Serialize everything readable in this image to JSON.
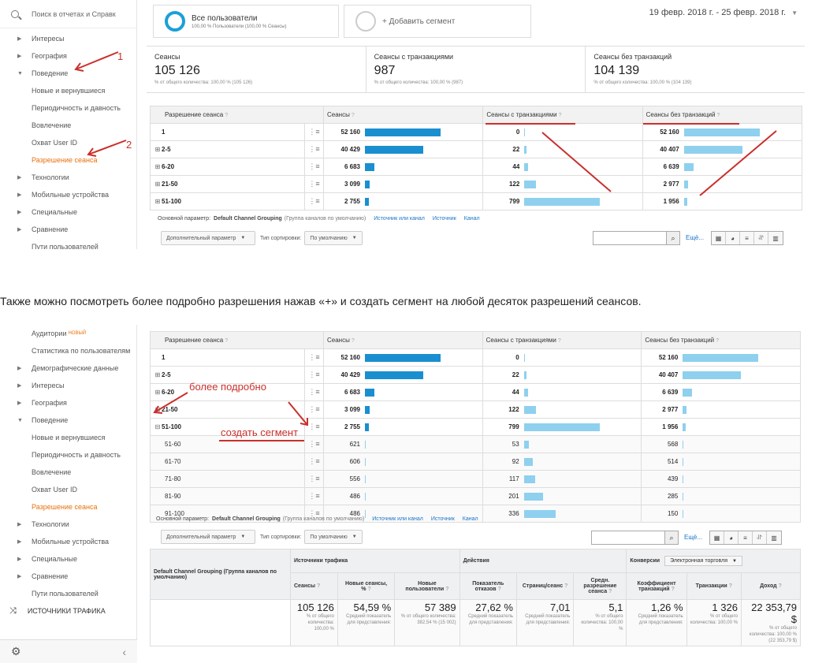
{
  "top": {
    "sidebar": {
      "search_placeholder": "Поиск в отчетах и Справк",
      "items": [
        {
          "label": "Интересы",
          "kind": "group",
          "open": false
        },
        {
          "label": "География",
          "kind": "group",
          "open": false
        },
        {
          "label": "Поведение",
          "kind": "group",
          "open": true
        },
        {
          "label": "Новые и вернувшиеся",
          "kind": "child"
        },
        {
          "label": "Периодичность и давность",
          "kind": "child"
        },
        {
          "label": "Вовлечение",
          "kind": "child"
        },
        {
          "label": "Охват User ID",
          "kind": "child"
        },
        {
          "label": "Разрешение сеанса",
          "kind": "child",
          "active": true
        },
        {
          "label": "Технологии",
          "kind": "group",
          "open": false
        },
        {
          "label": "Мобильные устройства",
          "kind": "group",
          "open": false
        },
        {
          "label": "Специальные",
          "kind": "group",
          "open": false
        },
        {
          "label": "Сравнение",
          "kind": "group",
          "open": false
        },
        {
          "label": "Пути пользователей",
          "kind": "child"
        }
      ]
    },
    "segment": {
      "title": "Все пользователи",
      "sub": "100,00 % Пользователи (100,00 % Сеансы)",
      "add_label": "+ Добавить сегмент"
    },
    "date_range": "19 февр. 2018 г. - 25 февр. 2018 г.",
    "scorecards": [
      {
        "label": "Сеансы",
        "value": "105 126",
        "sub": "% от общего количества: 100,00 % (105 126)"
      },
      {
        "label": "Сеансы с транзакциями",
        "value": "987",
        "sub": "% от общего количества: 100,00 % (987)"
      },
      {
        "label": "Сеансы без транзакций",
        "value": "104 139",
        "sub": "% от общего количества: 100,00 % (104 139)"
      }
    ],
    "annotations": {
      "one": "1",
      "two": "2"
    }
  },
  "table": {
    "headers": {
      "dimension": "Разрешение сеанса",
      "sessions": "Сеансы",
      "with_tx": "Сеансы с транзакциями",
      "without_tx": "Сеансы без транзакций"
    },
    "rows": [
      {
        "label": "1",
        "sessions": "52 160",
        "with_tx": "0",
        "without_tx": "52 160"
      },
      {
        "label": "2-5",
        "sessions": "40 429",
        "with_tx": "22",
        "without_tx": "40 407"
      },
      {
        "label": "6-20",
        "sessions": "6 683",
        "with_tx": "44",
        "without_tx": "6 639"
      },
      {
        "label": "21-50",
        "sessions": "3 099",
        "with_tx": "122",
        "without_tx": "2 977"
      },
      {
        "label": "51-100",
        "sessions": "2 755",
        "with_tx": "799",
        "without_tx": "1 956"
      }
    ],
    "sub_rows": [
      {
        "label": "51-60",
        "sessions": "621",
        "with_tx": "53",
        "without_tx": "568"
      },
      {
        "label": "61-70",
        "sessions": "606",
        "with_tx": "92",
        "without_tx": "514"
      },
      {
        "label": "71-80",
        "sessions": "556",
        "with_tx": "117",
        "without_tx": "439"
      },
      {
        "label": "81-90",
        "sessions": "486",
        "with_tx": "201",
        "without_tx": "285"
      },
      {
        "label": "91-100",
        "sessions": "486",
        "with_tx": "336",
        "without_tx": "150"
      }
    ],
    "primary": {
      "label": "Основной параметр:",
      "value": "Default Channel Grouping",
      "note": "(Группа каналов по умолчанию)",
      "links": [
        "Источник или канал",
        "Источник",
        "Канал"
      ]
    },
    "controls": {
      "secondary": "Дополнительный параметр",
      "sort_label": "Тип сортировки:",
      "sort_value": "По умолчанию",
      "more": "Ещё..."
    }
  },
  "caption": "Также можно посмотреть более подробно разрешения нажав «+» и создать сегмент на любой десяток разрешений сеансов.",
  "bottom": {
    "sidebar": {
      "items": [
        {
          "label": "Аудитории",
          "kind": "child",
          "badge": "НОВЫЙ"
        },
        {
          "label": "Статистика по пользователям",
          "kind": "child"
        },
        {
          "label": "Демографические данные",
          "kind": "group",
          "open": false
        },
        {
          "label": "Интересы",
          "kind": "group",
          "open": false
        },
        {
          "label": "География",
          "kind": "group",
          "open": false
        },
        {
          "label": "Поведение",
          "kind": "group",
          "open": true
        },
        {
          "label": "Новые и вернувшиеся",
          "kind": "child"
        },
        {
          "label": "Периодичность и давность",
          "kind": "child"
        },
        {
          "label": "Вовлечение",
          "kind": "child"
        },
        {
          "label": "Охват User ID",
          "kind": "child"
        },
        {
          "label": "Разрешение сеанса",
          "kind": "child",
          "active": true
        },
        {
          "label": "Технологии",
          "kind": "group",
          "open": false
        },
        {
          "label": "Мобильные устройства",
          "kind": "group",
          "open": false
        },
        {
          "label": "Специальные",
          "kind": "group",
          "open": false
        },
        {
          "label": "Сравнение",
          "kind": "group",
          "open": false
        },
        {
          "label": "Пути пользователей",
          "kind": "child"
        }
      ],
      "section": "ИСТОЧНИКИ ТРАФИКА"
    },
    "annotations": {
      "more": "более подробно",
      "segment": "создать сегмент"
    },
    "summary": {
      "dim_header": "Default Channel Grouping (Группа каналов по умолчанию)",
      "group_traffic": "Источники трафика",
      "group_actions": "Действия",
      "group_conv": "Конверсии",
      "conv_select": "Электронная торговля",
      "columns": [
        {
          "h": "Сеансы",
          "v": "105 126",
          "n": "% от общего количества: 100,00 %"
        },
        {
          "h": "Новые сеансы, %",
          "v": "54,59 %",
          "n": "Средний показатель для представления:"
        },
        {
          "h": "Новые пользователи",
          "v": "57 389",
          "n": "% от общего количества: 382,54 % (15 002)"
        },
        {
          "h": "Показатель отказов",
          "v": "27,62 %",
          "n": "Средний показатель для представления:"
        },
        {
          "h": "Страниц/сеанс",
          "v": "7,01",
          "n": "Средний показатель для представления:"
        },
        {
          "h": "Средн. разрешение сеанса",
          "v": "5,1",
          "n": "% от общего количества: 100,00 %"
        },
        {
          "h": "Коэффициент транзакций",
          "v": "1,26 %",
          "n": "Средний показатель для представления:"
        },
        {
          "h": "Транзакции",
          "v": "1 326",
          "n": "% от общего количества: 100,00 %"
        },
        {
          "h": "Доход",
          "v": "22 353,79 $",
          "n": "% от общего количества: 100,00 % (22 353,79 $)"
        }
      ]
    }
  },
  "colors": {
    "bar_dark": "#1a8fd0",
    "bar_light": "#8fd0ef",
    "accent": "#e8710a",
    "annotation": "#c9302c"
  },
  "bars": {
    "sessions": [
      1.0,
      0.775,
      0.128,
      0.059,
      0.053
    ],
    "with_tx": [
      0,
      0.028,
      0.055,
      0.153,
      1.0
    ],
    "without_tx": [
      1.0,
      0.775,
      0.127,
      0.057,
      0.037
    ],
    "sub_sessions": [
      0.012,
      0.012,
      0.011,
      0.009,
      0.009
    ],
    "sub_with_tx": [
      0.066,
      0.115,
      0.146,
      0.252,
      0.42
    ],
    "sub_without_tx": [
      0.011,
      0.01,
      0.008,
      0.005,
      0.003
    ]
  }
}
